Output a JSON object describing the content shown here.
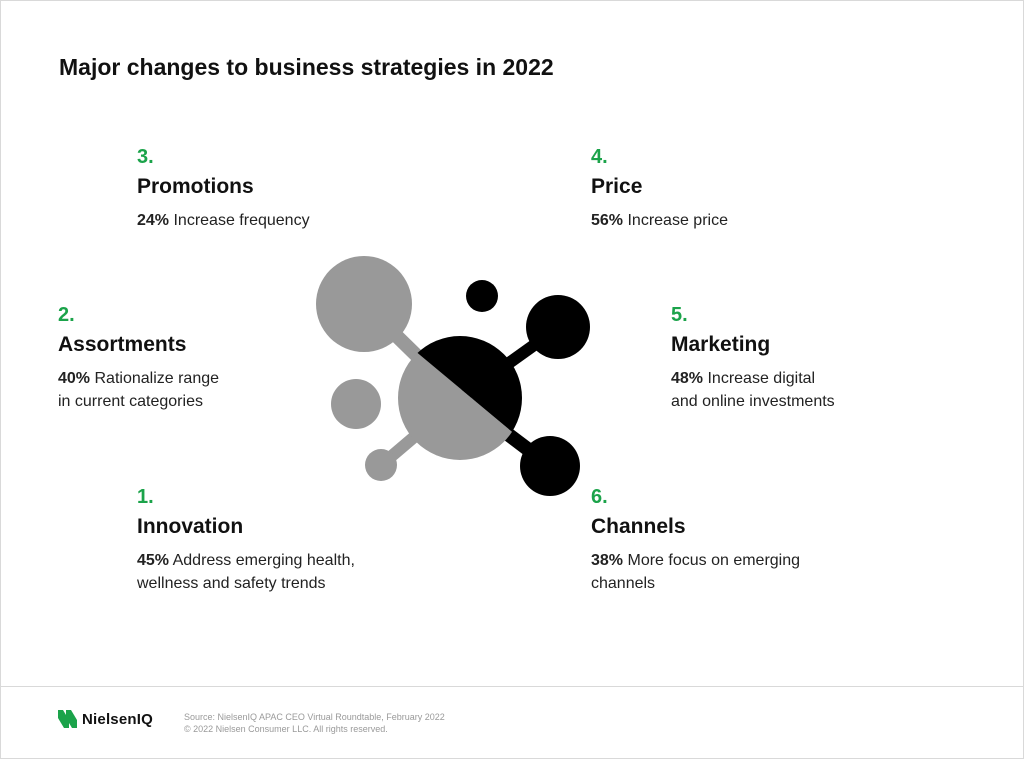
{
  "title": "Major changes to business strategies in 2022",
  "items": [
    {
      "number": "1.",
      "name": "Innovation",
      "percent": "45%",
      "text": "Address emerging health,",
      "text2": "wellness and safety trends"
    },
    {
      "number": "2.",
      "name": "Assortments",
      "percent": "40%",
      "text": "Rationalize range",
      "text2": "in current categories"
    },
    {
      "number": "3.",
      "name": "Promotions",
      "percent": "24%",
      "text": "Increase frequency",
      "text2": ""
    },
    {
      "number": "4.",
      "name": "Price",
      "percent": "56%",
      "text": "Increase price",
      "text2": ""
    },
    {
      "number": "5.",
      "name": "Marketing",
      "percent": "48%",
      "text": "Increase digital",
      "text2": "and online investments"
    },
    {
      "number": "6.",
      "name": "Channels",
      "percent": "38%",
      "text": "More focus on emerging",
      "text2": "channels"
    }
  ],
  "footer": {
    "logo": "NielsenIQ",
    "source": "Source: NielsenIQ APAC CEO Virtual Roundtable, February 2022",
    "copyright": "© 2022 Nielsen Consumer LLC. All rights reserved."
  },
  "colors": {
    "accent": "#1ba34a",
    "gray": "#999999",
    "black": "#000000"
  }
}
